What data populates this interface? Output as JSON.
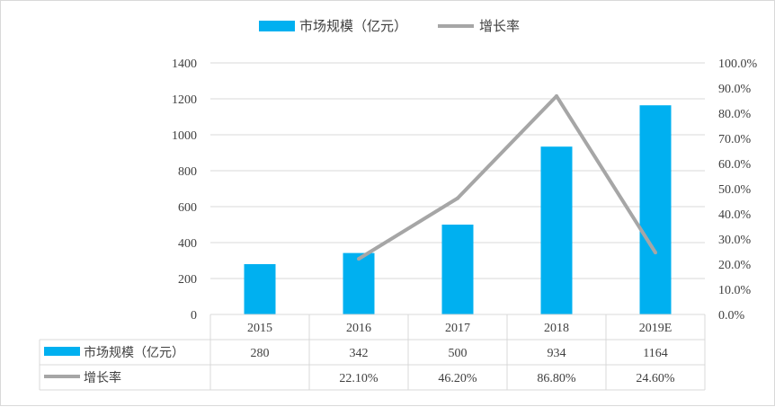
{
  "chart_data": {
    "type": "bar",
    "categories": [
      "2015",
      "2016",
      "2017",
      "2018",
      "2019E"
    ],
    "series": [
      {
        "name": "市场规模（亿元）",
        "type": "bar",
        "axis": "left",
        "color": "#00b0f0",
        "values": [
          280,
          342,
          500,
          934,
          1164
        ],
        "labels": [
          "280",
          "342",
          "500",
          "934",
          "1164"
        ]
      },
      {
        "name": "增长率",
        "type": "line",
        "axis": "right",
        "color": "#a6a6a6",
        "values": [
          null,
          22.1,
          46.2,
          86.8,
          24.6
        ],
        "labels": [
          "",
          "22.10%",
          "46.20%",
          "86.80%",
          "24.60%"
        ]
      }
    ],
    "y_left": {
      "range": [
        0,
        1400
      ],
      "ticks": [
        "0",
        "200",
        "400",
        "600",
        "800",
        "1000",
        "1200",
        "1400"
      ]
    },
    "y_right": {
      "range": [
        0,
        100
      ],
      "unit": "percent",
      "ticks": [
        "0.0%",
        "10.0%",
        "20.0%",
        "30.0%",
        "40.0%",
        "50.0%",
        "60.0%",
        "70.0%",
        "80.0%",
        "90.0%",
        "100.0%"
      ]
    },
    "legend": "top",
    "data_table": true,
    "grid": true,
    "gridline_color": "#d9d9d9",
    "axis_text_color": "#404040"
  }
}
